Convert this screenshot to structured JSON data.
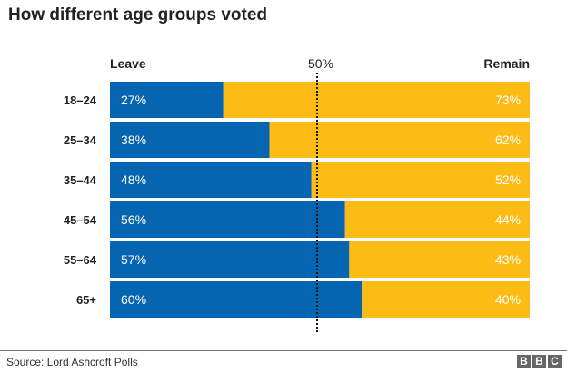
{
  "chart_data": {
    "type": "bar",
    "stacked": true,
    "orientation": "horizontal",
    "title": "How different age groups voted",
    "categories": [
      "18–24",
      "25–34",
      "35–44",
      "45–54",
      "55–64",
      "65+"
    ],
    "series": [
      {
        "name": "Leave",
        "values": [
          27,
          38,
          48,
          56,
          57,
          60
        ],
        "color": "#0565b0"
      },
      {
        "name": "Remain",
        "values": [
          73,
          62,
          52,
          44,
          43,
          40
        ],
        "color": "#fdbb16"
      }
    ],
    "reference_line": {
      "value": 50,
      "label": "50%"
    },
    "xlim": [
      0,
      100
    ]
  },
  "footer": {
    "source": "Source: Lord Ashcroft Polls",
    "logo": [
      "B",
      "B",
      "C"
    ]
  }
}
